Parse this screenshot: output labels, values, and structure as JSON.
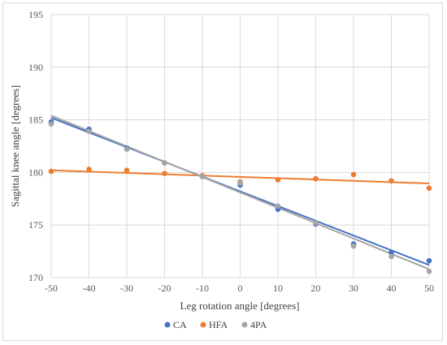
{
  "chart_data": {
    "type": "scatter",
    "xlabel": "Leg rotation angle [degrees]",
    "ylabel": "Sagittal knee angle [degrees]",
    "xlim": [
      -50,
      50
    ],
    "ylim": [
      170,
      195
    ],
    "xticks": [
      -50,
      -40,
      -30,
      -20,
      -10,
      0,
      10,
      20,
      30,
      40,
      50
    ],
    "yticks": [
      170,
      175,
      180,
      185,
      190,
      195
    ],
    "grid": "vertical and horizontal major gridlines",
    "legend_position": "bottom",
    "x": [
      -50,
      -40,
      -30,
      -20,
      -10,
      0,
      10,
      20,
      30,
      40,
      50
    ],
    "series": [
      {
        "name": "CA",
        "color": "#4472c4",
        "values": [
          184.8,
          184.1,
          182.3,
          180.9,
          179.6,
          178.8,
          176.5,
          175.1,
          173.2,
          172.4,
          171.6
        ],
        "trendline": {
          "type": "linear",
          "y_at_xmin": 185.2,
          "y_at_xmax": 171.2
        }
      },
      {
        "name": "HFA",
        "color": "#ed7d31",
        "values": [
          180.1,
          180.3,
          180.2,
          179.9,
          179.7,
          179.1,
          179.3,
          179.4,
          179.8,
          179.2,
          178.5
        ],
        "trendline": {
          "type": "linear",
          "y_at_xmin": 180.2,
          "y_at_xmax": 178.95
        }
      },
      {
        "name": "4PA",
        "color": "#a5a5a5",
        "values": [
          184.6,
          183.9,
          182.2,
          180.9,
          179.6,
          179.0,
          176.8,
          175.2,
          173.0,
          172.0,
          170.6
        ],
        "trendline": {
          "type": "linear",
          "y_at_xmin": 185.4,
          "y_at_xmax": 170.8
        }
      }
    ]
  }
}
